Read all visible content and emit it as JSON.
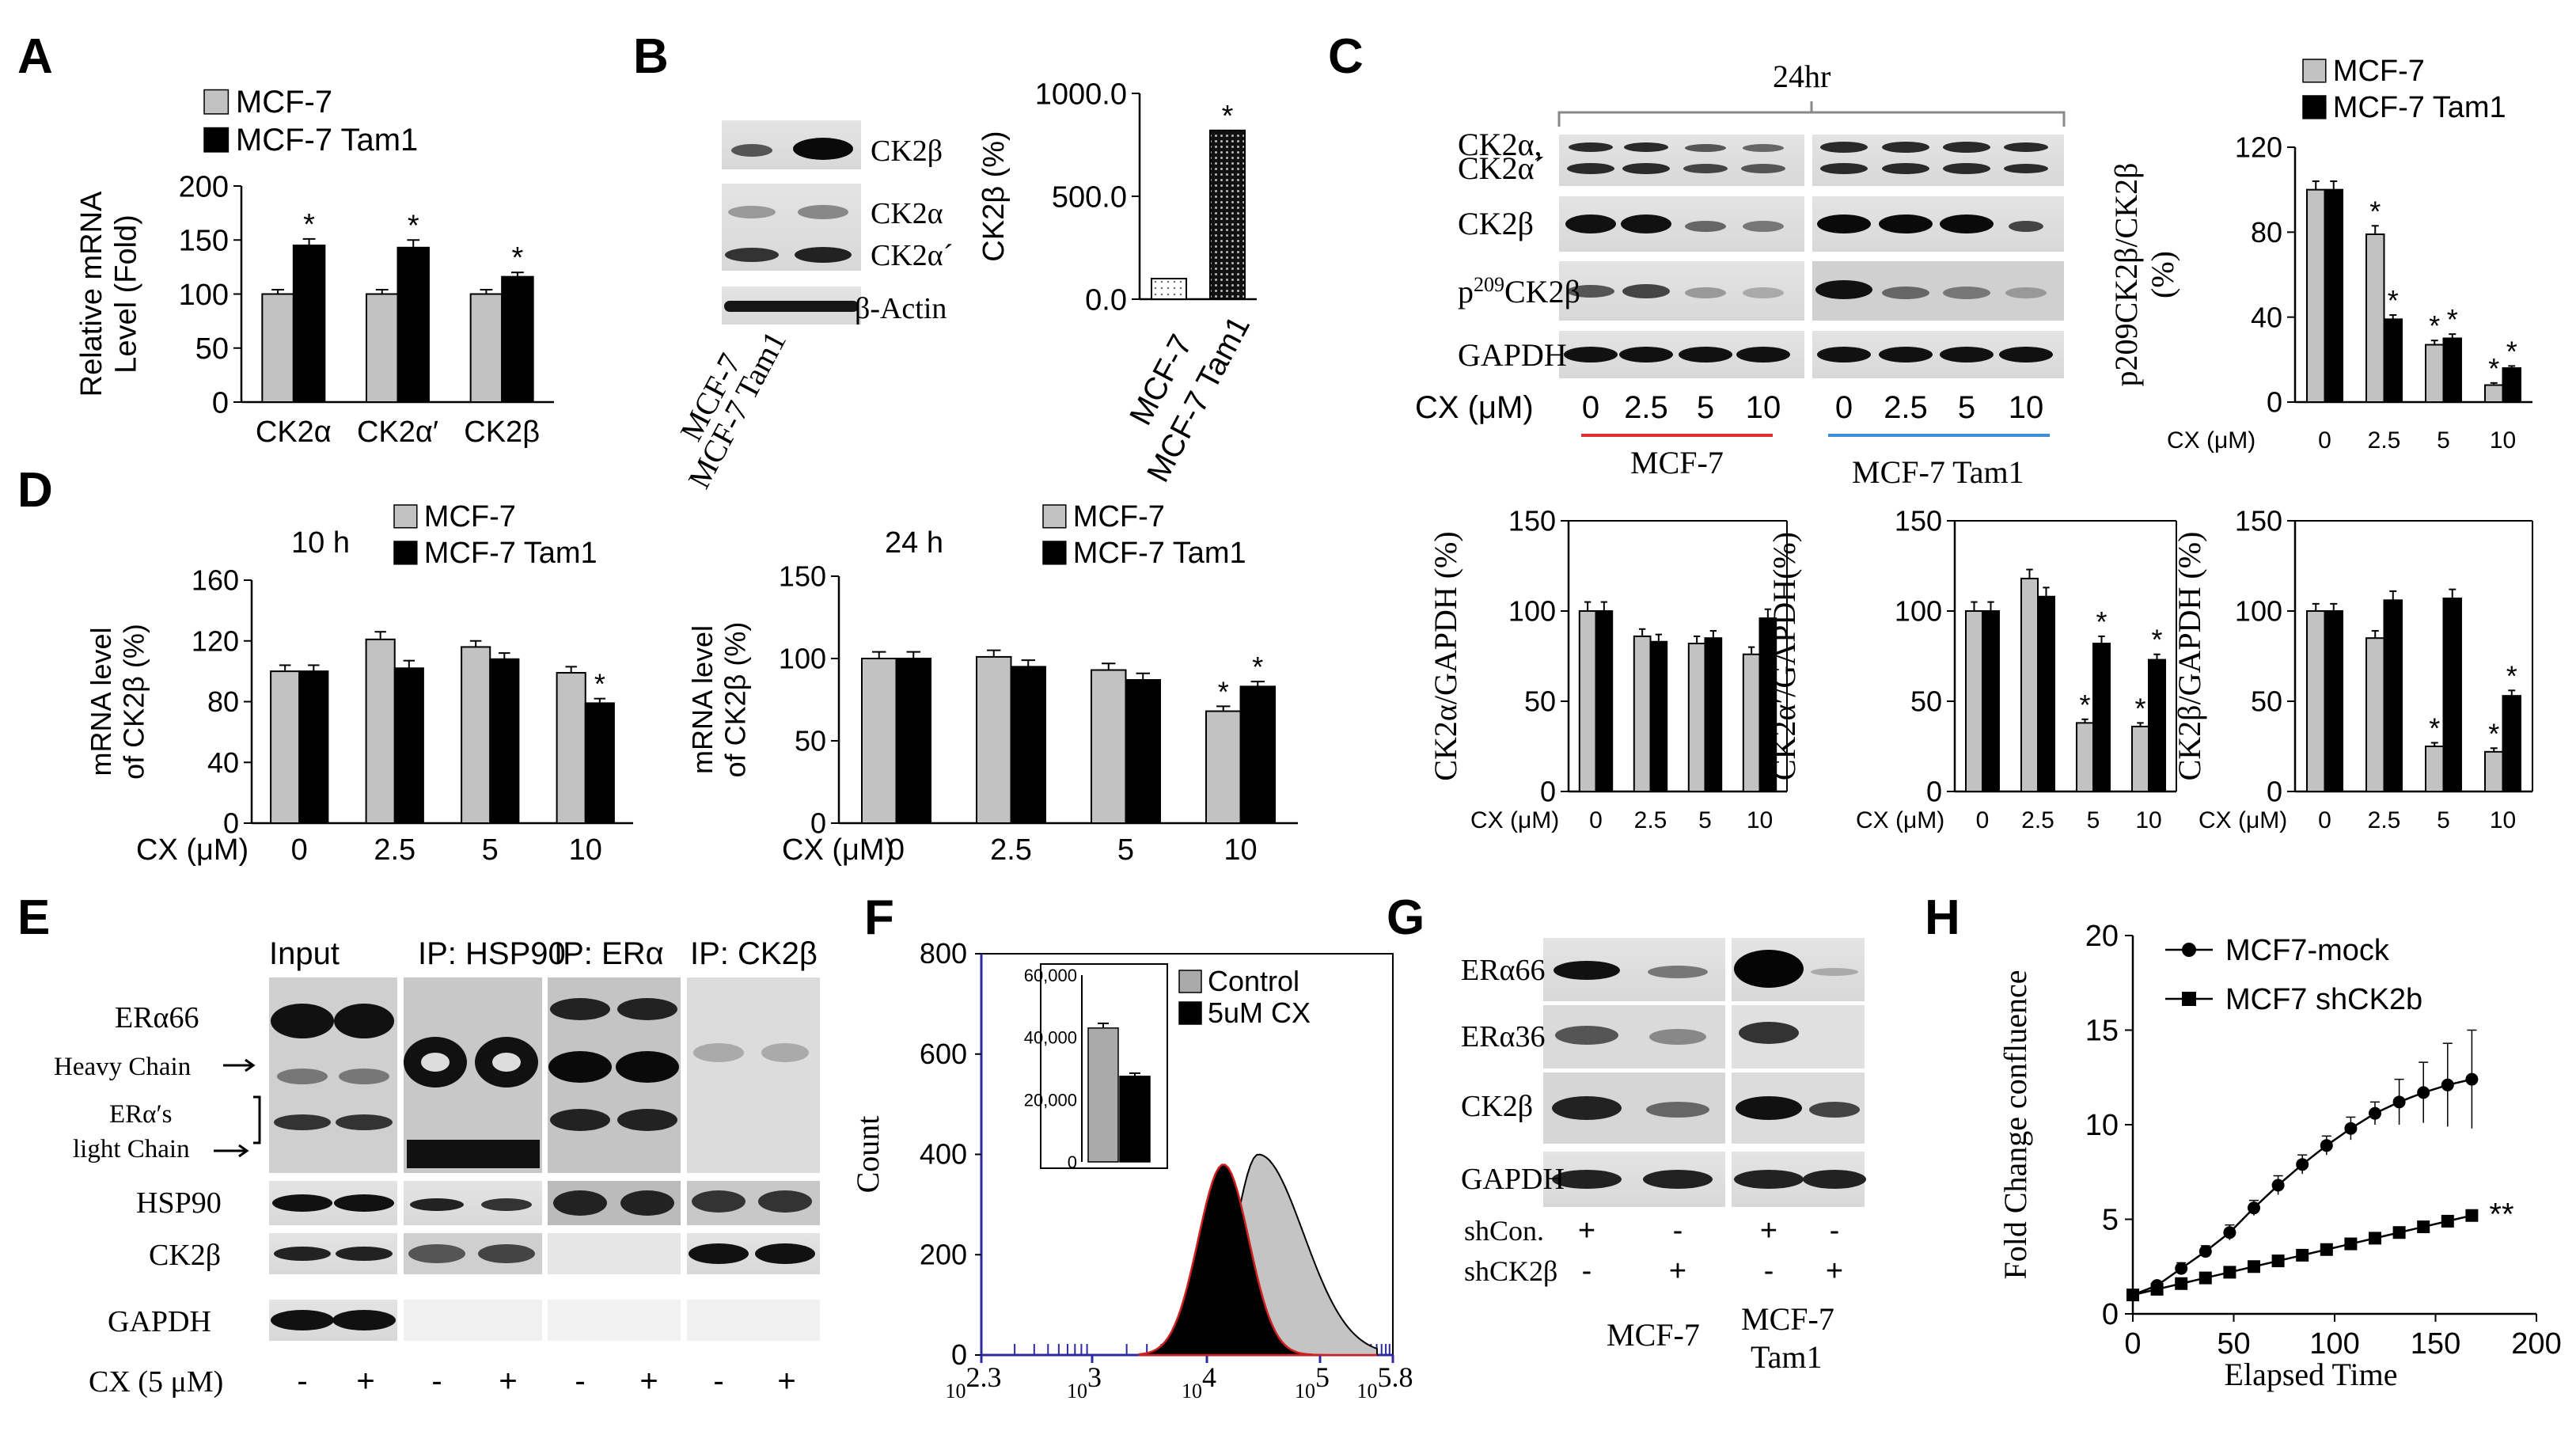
{
  "colors": {
    "mcf7": "#c2c2c2",
    "tam1": "#000000",
    "red_line": "#e03030",
    "blue_line": "#3a8fd8",
    "hist_axis": "#2a2aa0"
  },
  "panel_letters": [
    "A",
    "B",
    "C",
    "D",
    "E",
    "F",
    "G",
    "H"
  ],
  "chart_data": [
    {
      "id": "A",
      "type": "bar",
      "ylabel": "Relative mRNA Level (Fold)",
      "categories": [
        "CK2α",
        "CK2α′",
        "CK2β"
      ],
      "ylim": [
        0,
        200
      ],
      "yticks": [
        "0",
        "50",
        "100",
        "150",
        "200"
      ],
      "legend": [
        "MCF-7",
        "MCF-7 Tam1"
      ],
      "series": [
        {
          "name": "MCF-7",
          "values": [
            100,
            100,
            100
          ],
          "err": [
            4,
            4,
            4
          ]
        },
        {
          "name": "MCF-7 Tam1",
          "values": [
            145,
            143,
            116
          ],
          "err": [
            6,
            7,
            4
          ]
        }
      ],
      "sig": [
        [
          false,
          true
        ],
        [
          false,
          true
        ],
        [
          false,
          true
        ]
      ]
    },
    {
      "id": "B_chart",
      "type": "bar",
      "ylabel": "CK2β (%)",
      "categories": [
        "MCF-7",
        "MCF-7 Tam1"
      ],
      "ylim": [
        0,
        1000
      ],
      "yticks": [
        "0.0",
        "500.0",
        "1000.0"
      ],
      "values": [
        100,
        820
      ],
      "sig": [
        false,
        true
      ]
    },
    {
      "id": "C_top",
      "type": "bar",
      "ylabel": "p209CK2β/CK2β (%)",
      "xlabel": "CX (μM)",
      "categories": [
        "0",
        "2.5",
        "5",
        "10"
      ],
      "ylim": [
        0,
        120
      ],
      "yticks": [
        "0",
        "40",
        "80",
        "120"
      ],
      "legend": [
        "MCF-7",
        "MCF-7 Tam1"
      ],
      "series": [
        {
          "name": "MCF-7",
          "values": [
            100,
            79,
            27,
            8
          ],
          "err": [
            4,
            4,
            2,
            1
          ]
        },
        {
          "name": "MCF-7 Tam1",
          "values": [
            100,
            39,
            30,
            16
          ],
          "err": [
            4,
            2,
            2,
            1
          ]
        }
      ],
      "sig": [
        [
          false,
          false
        ],
        [
          true,
          true
        ],
        [
          true,
          true
        ],
        [
          true,
          true
        ]
      ]
    },
    {
      "id": "C_b1",
      "type": "bar",
      "ylabel": "CK2α/GAPDH (%)",
      "xlabel": "CX (μM)",
      "categories": [
        "0",
        "2.5",
        "5",
        "10"
      ],
      "ylim": [
        0,
        150
      ],
      "yticks": [
        "0",
        "50",
        "100",
        "150"
      ],
      "series": [
        {
          "name": "MCF-7",
          "values": [
            100,
            86,
            82,
            76
          ],
          "err": [
            5,
            4,
            4,
            4
          ]
        },
        {
          "name": "MCF-7 Tam1",
          "values": [
            100,
            83,
            85,
            96
          ],
          "err": [
            5,
            4,
            4,
            5
          ]
        }
      ],
      "sig": [
        [
          false,
          false
        ],
        [
          false,
          false
        ],
        [
          false,
          false
        ],
        [
          false,
          false
        ]
      ]
    },
    {
      "id": "C_b2",
      "type": "bar",
      "ylabel": "CK2α′/GAPDH(%)",
      "xlabel": "CX (μM)",
      "categories": [
        "0",
        "2.5",
        "5",
        "10"
      ],
      "ylim": [
        0,
        150
      ],
      "yticks": [
        "0",
        "50",
        "100",
        "150"
      ],
      "series": [
        {
          "name": "MCF-7",
          "values": [
            100,
            118,
            38,
            36
          ],
          "err": [
            5,
            5,
            2,
            2
          ]
        },
        {
          "name": "MCF-7 Tam1",
          "values": [
            100,
            108,
            82,
            73
          ],
          "err": [
            5,
            5,
            4,
            3
          ]
        }
      ],
      "sig": [
        [
          false,
          false
        ],
        [
          false,
          false
        ],
        [
          true,
          true
        ],
        [
          true,
          true
        ]
      ]
    },
    {
      "id": "C_b3",
      "type": "bar",
      "ylabel": "CK2β/GAPDH (%)",
      "xlabel": "CX (μM)",
      "categories": [
        "0",
        "2.5",
        "5",
        "10"
      ],
      "ylim": [
        0,
        150
      ],
      "yticks": [
        "0",
        "50",
        "100",
        "150"
      ],
      "series": [
        {
          "name": "MCF-7",
          "values": [
            100,
            85,
            25,
            22
          ],
          "err": [
            4,
            4,
            2,
            2
          ]
        },
        {
          "name": "MCF-7 Tam1",
          "values": [
            100,
            106,
            107,
            53
          ],
          "err": [
            4,
            5,
            5,
            3
          ]
        }
      ],
      "sig": [
        [
          false,
          false
        ],
        [
          false,
          false
        ],
        [
          true,
          false
        ],
        [
          true,
          true
        ]
      ]
    },
    {
      "id": "D1",
      "type": "bar",
      "title": "10 h",
      "ylabel": "mRNA level of CK2β (%)",
      "xlabel": "CX (μM)",
      "categories": [
        "0",
        "2.5",
        "5",
        "10"
      ],
      "ylim": [
        0,
        160
      ],
      "yticks": [
        "0",
        "40",
        "80",
        "120",
        "160"
      ],
      "legend": [
        "MCF-7",
        "MCF-7 Tam1"
      ],
      "series": [
        {
          "name": "MCF-7",
          "values": [
            100,
            121,
            116,
            99
          ],
          "err": [
            4,
            5,
            4,
            4
          ]
        },
        {
          "name": "MCF-7 Tam1",
          "values": [
            100,
            102,
            108,
            79
          ],
          "err": [
            4,
            5,
            4,
            3
          ]
        }
      ],
      "sig": [
        [
          false,
          false
        ],
        [
          false,
          false
        ],
        [
          false,
          false
        ],
        [
          false,
          true
        ]
      ]
    },
    {
      "id": "D2",
      "type": "bar",
      "title": "24 h",
      "ylabel": "mRNA level of CK2β (%)",
      "xlabel": "CX (μM)",
      "categories": [
        "0",
        "2.5",
        "5",
        "10"
      ],
      "ylim": [
        0,
        150
      ],
      "yticks": [
        "0",
        "50",
        "100",
        "150"
      ],
      "legend": [
        "MCF-7",
        "MCF-7 Tam1"
      ],
      "series": [
        {
          "name": "MCF-7",
          "values": [
            100,
            101,
            93,
            68
          ],
          "err": [
            4,
            4,
            4,
            3
          ]
        },
        {
          "name": "MCF-7 Tam1",
          "values": [
            100,
            95,
            87,
            83
          ],
          "err": [
            4,
            4,
            4,
            3
          ]
        }
      ],
      "sig": [
        [
          false,
          false
        ],
        [
          false,
          false
        ],
        [
          false,
          false
        ],
        [
          true,
          true
        ]
      ]
    },
    {
      "id": "F_hist",
      "type": "area",
      "ylabel": "Count",
      "ylim": [
        0,
        800
      ],
      "yticks": [
        "0",
        "200",
        "400",
        "600",
        "800"
      ],
      "xticks": [
        {
          "base": "10",
          "exp": "2.3"
        },
        {
          "base": "10",
          "exp": "3"
        },
        {
          "base": "10",
          "exp": "4"
        },
        {
          "base": "10",
          "exp": "5"
        },
        {
          "base": "10",
          "exp": "5.8"
        }
      ],
      "legend": [
        "Control",
        "5uM CX"
      ],
      "inset": {
        "type": "bar",
        "ylim": [
          0,
          60000
        ],
        "yticks": [
          "0",
          "20,000",
          "40,000",
          "60,000"
        ],
        "values": [
          43000,
          27500
        ],
        "err": [
          1500,
          1000
        ]
      }
    },
    {
      "id": "H",
      "type": "line",
      "ylabel": "Fold Change confluence",
      "xlabel": "Elapsed Time",
      "xlim": [
        0,
        200
      ],
      "ylim": [
        0,
        20
      ],
      "xticks": [
        "0",
        "50",
        "100",
        "150",
        "200"
      ],
      "yticks": [
        "0",
        "5",
        "10",
        "15",
        "20"
      ],
      "series": [
        {
          "name": "MCF7-mock",
          "marker": "circle",
          "x": [
            0,
            12,
            24,
            36,
            48,
            60,
            72,
            84,
            96,
            108,
            120,
            132,
            144,
            156,
            168
          ],
          "y": [
            1,
            1.5,
            2.4,
            3.3,
            4.3,
            5.6,
            6.8,
            7.9,
            8.9,
            9.8,
            10.6,
            11.2,
            11.7,
            12.1,
            12.4
          ],
          "err": [
            0.2,
            0.2,
            0.3,
            0.3,
            0.4,
            0.4,
            0.5,
            0.5,
            0.5,
            0.6,
            0.6,
            1.2,
            1.6,
            2.2,
            2.6
          ]
        },
        {
          "name": "MCF7 shCK2b",
          "marker": "square",
          "x": [
            0,
            12,
            24,
            36,
            48,
            60,
            72,
            84,
            96,
            108,
            120,
            132,
            144,
            156,
            168
          ],
          "y": [
            1,
            1.3,
            1.6,
            1.9,
            2.2,
            2.5,
            2.8,
            3.1,
            3.4,
            3.7,
            4.0,
            4.3,
            4.6,
            4.9,
            5.2
          ],
          "err": [
            0.1,
            0.1,
            0.1,
            0.1,
            0.1,
            0.1,
            0.1,
            0.1,
            0.1,
            0.1,
            0.15,
            0.15,
            0.2,
            0.2,
            0.25
          ]
        }
      ],
      "annotation": "**"
    }
  ],
  "blots": {
    "B": {
      "labels": [
        "CK2β",
        "CK2α",
        "CK2α´",
        "β-Actin"
      ],
      "lanes": [
        "MCF-7",
        "MCF-7 Tam1"
      ]
    },
    "C": {
      "title": "24hr",
      "labels": [
        "CK2α,",
        "CK2α´",
        "CK2β",
        "GAPDH"
      ],
      "p209_label": {
        "prefix": "p",
        "sup": "209",
        "suffix": "CK2β"
      },
      "cx_label": "CX (μM)",
      "cx_values": [
        "0",
        "2.5",
        "5",
        "10",
        "0",
        "2.5",
        "5",
        "10"
      ],
      "groups": [
        "MCF-7",
        "MCF-7 Tam1"
      ]
    },
    "E": {
      "headers": [
        "Input",
        "IP: HSP90",
        "IP: ERα",
        "IP: CK2β"
      ],
      "labels": [
        "ERα66",
        "Heavy Chain",
        "ERα′s",
        "light Chain",
        "HSP90",
        "CK2β",
        "GAPDH"
      ],
      "cx_label": "CX (5 μM)",
      "cx_values": [
        "-",
        "+",
        "-",
        "+",
        "-",
        "+",
        "-",
        "+"
      ]
    },
    "G": {
      "labels": [
        "ERα66",
        "ERα36",
        "CK2β",
        "GAPDH"
      ],
      "rows": [
        {
          "label": "shCon.",
          "values": [
            "+",
            "-",
            "+",
            "-"
          ]
        },
        {
          "label": "shCK2β",
          "values": [
            "-",
            "+",
            "-",
            "+"
          ]
        }
      ],
      "groups": [
        "MCF-7",
        "MCF-7",
        "Tam1"
      ]
    }
  }
}
